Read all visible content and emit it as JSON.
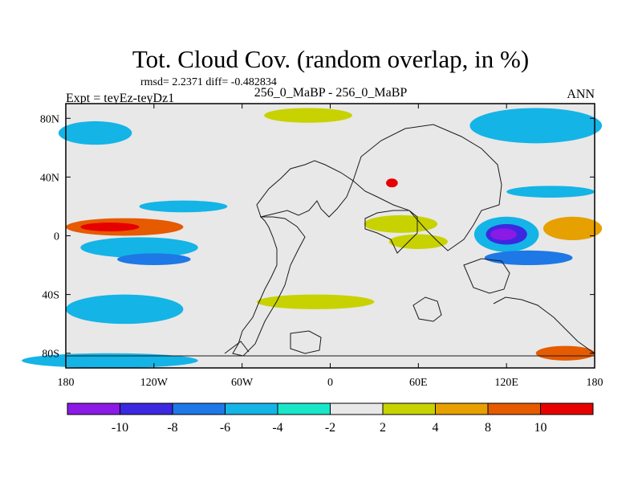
{
  "chart_data": {
    "type": "heatmap",
    "title": "Tot. Cloud Cov. (random overlap, in %)",
    "stats": "rmsd= 2.2371 diff= -0.482834",
    "left_label": "Expt = teyEz-teyDz1",
    "center_label": "256_0_MaBP - 256_0_MaBP",
    "right_label": "ANN",
    "x_ticks": [
      "180",
      "120W",
      "60W",
      "0",
      "60E",
      "120E",
      "180"
    ],
    "x_tick_values": [
      -180,
      -120,
      -60,
      0,
      60,
      120,
      180
    ],
    "y_ticks": [
      "80N",
      "40N",
      "0",
      "40S",
      "80S"
    ],
    "y_tick_values": [
      80,
      40,
      0,
      -40,
      -80
    ],
    "xlim": [
      -180,
      180
    ],
    "ylim": [
      -90,
      90
    ],
    "colorbar": {
      "labels": [
        "-10",
        "-8",
        "-6",
        "-4",
        "-2",
        "2",
        "4",
        "8",
        "10"
      ],
      "colors": [
        "#8b1ae6",
        "#3c28e0",
        "#1e78e6",
        "#14b4e6",
        "#19e6c8",
        "#e8e8e8",
        "#c8d200",
        "#e6a000",
        "#e65a00",
        "#e60000"
      ]
    },
    "contour_regions": [
      {
        "lon": -140,
        "lat": 6,
        "rlon": 40,
        "rlat": 6,
        "level": 8
      },
      {
        "lon": -150,
        "lat": 6,
        "rlon": 20,
        "rlat": 3,
        "level": 10
      },
      {
        "lon": -130,
        "lat": -8,
        "rlon": 40,
        "rlat": 7,
        "level": -4
      },
      {
        "lon": -120,
        "lat": -16,
        "rlon": 25,
        "rlat": 4,
        "level": -6
      },
      {
        "lon": 120,
        "lat": 1,
        "rlon": 22,
        "rlat": 12,
        "level": -4
      },
      {
        "lon": 120,
        "lat": 1,
        "rlon": 14,
        "rlat": 7,
        "level": -8
      },
      {
        "lon": 118,
        "lat": 1,
        "rlon": 9,
        "rlat": 4,
        "level": -10
      },
      {
        "lon": 135,
        "lat": -15,
        "rlon": 30,
        "rlat": 5,
        "level": -6
      },
      {
        "lon": 165,
        "lat": 5,
        "rlon": 20,
        "rlat": 8,
        "level": 4
      },
      {
        "lon": 48,
        "lat": 8,
        "rlon": 25,
        "rlat": 6,
        "level": 2
      },
      {
        "lon": 60,
        "lat": -4,
        "rlon": 20,
        "rlat": 5,
        "level": 2
      },
      {
        "lon": -10,
        "lat": -45,
        "rlon": 40,
        "rlat": 5,
        "level": 2
      },
      {
        "lon": -15,
        "lat": 82,
        "rlon": 30,
        "rlat": 5,
        "level": 2
      },
      {
        "lon": 160,
        "lat": -80,
        "rlon": 20,
        "rlat": 5,
        "level": 8
      },
      {
        "lon": 42,
        "lat": 36,
        "rlon": 4,
        "rlat": 3,
        "level": 10
      },
      {
        "lon": -160,
        "lat": 70,
        "rlon": 25,
        "rlat": 8,
        "level": -4
      },
      {
        "lon": 140,
        "lat": 75,
        "rlon": 45,
        "rlat": 12,
        "level": -4
      },
      {
        "lon": -100,
        "lat": 20,
        "rlon": 30,
        "rlat": 4,
        "level": -4
      },
      {
        "lon": -140,
        "lat": -50,
        "rlon": 40,
        "rlat": 10,
        "level": -4
      },
      {
        "lon": -150,
        "lat": -85,
        "rlon": 60,
        "rlat": 5,
        "level": -4
      },
      {
        "lon": 150,
        "lat": 30,
        "rlon": 30,
        "rlat": 4,
        "level": -4
      }
    ]
  }
}
